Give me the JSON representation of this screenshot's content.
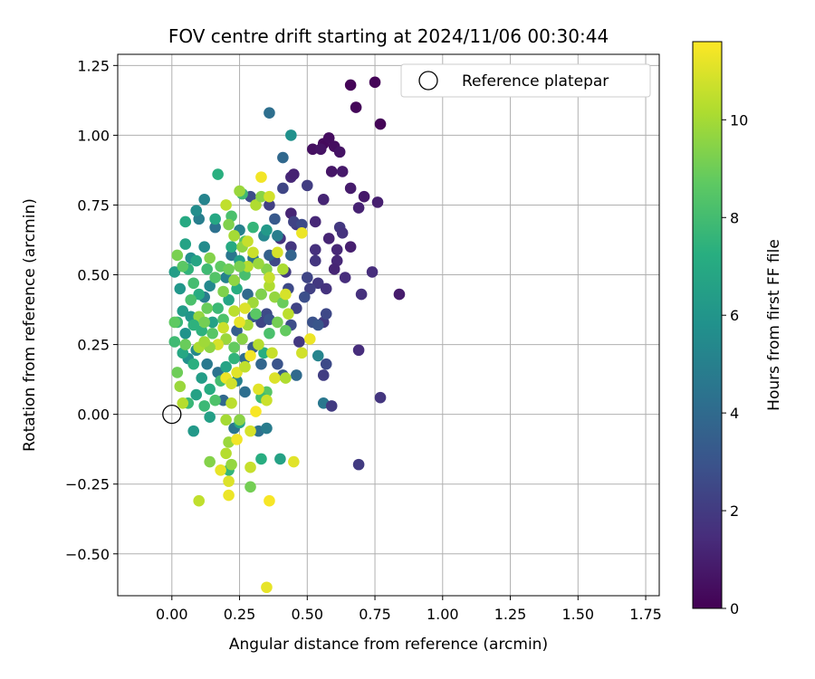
{
  "chart_data": {
    "type": "scatter",
    "title": "FOV centre drift starting at 2024/11/06 00:30:44",
    "xlabel": "Angular distance from reference (arcmin)",
    "ylabel": "Rotation from reference (arcmin)",
    "xlim": [
      -0.2,
      1.8
    ],
    "ylim": [
      -0.65,
      1.29
    ],
    "xticks": [
      "0.00",
      "0.25",
      "0.50",
      "0.75",
      "1.00",
      "1.25",
      "1.50",
      "1.75"
    ],
    "xtick_values": [
      0,
      0.25,
      0.5,
      0.75,
      1.0,
      1.25,
      1.5,
      1.75
    ],
    "yticks": [
      "−0.50",
      "−0.25",
      "0.00",
      "0.25",
      "0.50",
      "0.75",
      "1.00",
      "1.25"
    ],
    "ytick_values": [
      -0.5,
      -0.25,
      0,
      0.25,
      0.5,
      0.75,
      1.0,
      1.25
    ],
    "grid": true,
    "legend": {
      "label": "Reference platepar",
      "placement": "top-right"
    },
    "reference_point": {
      "x": 0,
      "y": 0
    },
    "colorbar": {
      "label": "Hours from first FF file",
      "colormap": "viridis",
      "range": [
        0,
        11.6
      ],
      "ticks": [
        "0",
        "2",
        "4",
        "6",
        "8",
        "10"
      ],
      "tick_values": [
        0,
        2,
        4,
        6,
        8,
        10
      ]
    },
    "points": [
      {
        "x": 0.66,
        "y": 1.18,
        "h": 0.1
      },
      {
        "x": 0.75,
        "y": 1.19,
        "h": 0.1
      },
      {
        "x": 0.77,
        "y": 1.04,
        "h": 0.1
      },
      {
        "x": 0.68,
        "y": 1.1,
        "h": 0.2
      },
      {
        "x": 0.56,
        "y": 0.97,
        "h": 0.3
      },
      {
        "x": 0.58,
        "y": 0.99,
        "h": 0.4
      },
      {
        "x": 0.52,
        "y": 0.95,
        "h": 0.5
      },
      {
        "x": 0.55,
        "y": 0.95,
        "h": 0.6
      },
      {
        "x": 0.6,
        "y": 0.96,
        "h": 0.4
      },
      {
        "x": 0.62,
        "y": 0.94,
        "h": 0.6
      },
      {
        "x": 0.59,
        "y": 0.87,
        "h": 0.7
      },
      {
        "x": 0.63,
        "y": 0.87,
        "h": 0.8
      },
      {
        "x": 0.66,
        "y": 0.81,
        "h": 0.9
      },
      {
        "x": 0.71,
        "y": 0.78,
        "h": 0.8
      },
      {
        "x": 0.76,
        "y": 0.76,
        "h": 1.0
      },
      {
        "x": 0.69,
        "y": 0.74,
        "h": 1.1
      },
      {
        "x": 0.56,
        "y": 0.77,
        "h": 1.2
      },
      {
        "x": 0.53,
        "y": 0.69,
        "h": 1.3
      },
      {
        "x": 0.58,
        "y": 0.63,
        "h": 1.2
      },
      {
        "x": 0.61,
        "y": 0.59,
        "h": 1.3
      },
      {
        "x": 0.66,
        "y": 0.6,
        "h": 1.0
      },
      {
        "x": 0.62,
        "y": 0.67,
        "h": 1.9
      },
      {
        "x": 0.63,
        "y": 0.65,
        "h": 1.7
      },
      {
        "x": 0.61,
        "y": 0.55,
        "h": 1.3
      },
      {
        "x": 0.64,
        "y": 0.49,
        "h": 1.5
      },
      {
        "x": 0.6,
        "y": 0.52,
        "h": 1.2
      },
      {
        "x": 0.53,
        "y": 0.59,
        "h": 1.6
      },
      {
        "x": 0.53,
        "y": 0.55,
        "h": 1.8
      },
      {
        "x": 0.54,
        "y": 0.47,
        "h": 1.9
      },
      {
        "x": 0.57,
        "y": 0.45,
        "h": 1.7
      },
      {
        "x": 0.74,
        "y": 0.51,
        "h": 1.5
      },
      {
        "x": 0.84,
        "y": 0.43,
        "h": 0.9
      },
      {
        "x": 0.7,
        "y": 0.43,
        "h": 1.6
      },
      {
        "x": 0.44,
        "y": 0.85,
        "h": 1.3
      },
      {
        "x": 0.45,
        "y": 0.86,
        "h": 1.1
      },
      {
        "x": 0.5,
        "y": 0.82,
        "h": 2.1
      },
      {
        "x": 0.41,
        "y": 0.81,
        "h": 2.4
      },
      {
        "x": 0.44,
        "y": 0.72,
        "h": 1.2
      },
      {
        "x": 0.46,
        "y": 0.68,
        "h": 2.0
      },
      {
        "x": 0.4,
        "y": 0.63,
        "h": 1.7
      },
      {
        "x": 0.45,
        "y": 0.69,
        "h": 2.3
      },
      {
        "x": 0.48,
        "y": 0.68,
        "h": 2.6
      },
      {
        "x": 0.36,
        "y": 0.75,
        "h": 2.2
      },
      {
        "x": 0.44,
        "y": 0.6,
        "h": 1.8
      },
      {
        "x": 0.38,
        "y": 0.55,
        "h": 2.5
      },
      {
        "x": 0.42,
        "y": 0.51,
        "h": 2.0
      },
      {
        "x": 0.5,
        "y": 0.49,
        "h": 2.4
      },
      {
        "x": 0.51,
        "y": 0.45,
        "h": 2.2
      },
      {
        "x": 0.43,
        "y": 0.45,
        "h": 2.6
      },
      {
        "x": 0.49,
        "y": 0.42,
        "h": 2.8
      },
      {
        "x": 0.46,
        "y": 0.38,
        "h": 2.3
      },
      {
        "x": 0.56,
        "y": 0.33,
        "h": 2.0
      },
      {
        "x": 0.52,
        "y": 0.33,
        "h": 2.9
      },
      {
        "x": 0.44,
        "y": 0.32,
        "h": 2.7
      },
      {
        "x": 0.47,
        "y": 0.26,
        "h": 1.9
      },
      {
        "x": 0.54,
        "y": 0.32,
        "h": 3.1
      },
      {
        "x": 0.57,
        "y": 0.36,
        "h": 2.5
      },
      {
        "x": 0.33,
        "y": 0.43,
        "h": 2.8
      },
      {
        "x": 0.35,
        "y": 0.36,
        "h": 2.6
      },
      {
        "x": 0.33,
        "y": 0.33,
        "h": 2.4
      },
      {
        "x": 0.36,
        "y": 0.34,
        "h": 3.0
      },
      {
        "x": 0.29,
        "y": 0.78,
        "h": 2.7
      },
      {
        "x": 0.38,
        "y": 0.7,
        "h": 3.2
      },
      {
        "x": 0.41,
        "y": 0.92,
        "h": 3.9
      },
      {
        "x": 0.36,
        "y": 1.08,
        "h": 4.2
      },
      {
        "x": 0.44,
        "y": 1.0,
        "h": 5.8
      },
      {
        "x": 0.36,
        "y": 0.57,
        "h": 3.6
      },
      {
        "x": 0.3,
        "y": 0.35,
        "h": 3.3
      },
      {
        "x": 0.24,
        "y": 0.3,
        "h": 3.5
      },
      {
        "x": 0.3,
        "y": 0.24,
        "h": 3.4
      },
      {
        "x": 0.27,
        "y": 0.2,
        "h": 4.1
      },
      {
        "x": 0.33,
        "y": 0.18,
        "h": 3.8
      },
      {
        "x": 0.39,
        "y": 0.18,
        "h": 3.0
      },
      {
        "x": 0.41,
        "y": 0.14,
        "h": 3.3
      },
      {
        "x": 0.57,
        "y": 0.18,
        "h": 2.6
      },
      {
        "x": 0.54,
        "y": 0.21,
        "h": 5.2
      },
      {
        "x": 0.56,
        "y": 0.14,
        "h": 2.1
      },
      {
        "x": 0.46,
        "y": 0.14,
        "h": 4.0
      },
      {
        "x": 0.56,
        "y": 0.04,
        "h": 4.6
      },
      {
        "x": 0.59,
        "y": 0.03,
        "h": 2.0
      },
      {
        "x": 0.77,
        "y": 0.06,
        "h": 1.8
      },
      {
        "x": 0.69,
        "y": 0.23,
        "h": 1.5
      },
      {
        "x": 0.69,
        "y": -0.18,
        "h": 2.0
      },
      {
        "x": 0.32,
        "y": -0.06,
        "h": 4.3
      },
      {
        "x": 0.35,
        "y": -0.05,
        "h": 4.8
      },
      {
        "x": 0.23,
        "y": -0.05,
        "h": 4.5
      },
      {
        "x": 0.19,
        "y": 0.05,
        "h": 3.9
      },
      {
        "x": 0.17,
        "y": 0.15,
        "h": 4.4
      },
      {
        "x": 0.13,
        "y": 0.18,
        "h": 4.7
      },
      {
        "x": 0.24,
        "y": 0.12,
        "h": 5.0
      },
      {
        "x": 0.27,
        "y": 0.08,
        "h": 4.2
      },
      {
        "x": 0.39,
        "y": 0.64,
        "h": 4.9
      },
      {
        "x": 0.44,
        "y": 0.57,
        "h": 3.7
      },
      {
        "x": 0.34,
        "y": 0.64,
        "h": 5.3
      },
      {
        "x": 0.3,
        "y": 0.56,
        "h": 4.4
      },
      {
        "x": 0.22,
        "y": 0.57,
        "h": 4.6
      },
      {
        "x": 0.2,
        "y": 0.49,
        "h": 5.1
      },
      {
        "x": 0.14,
        "y": 0.46,
        "h": 5.4
      },
      {
        "x": 0.12,
        "y": 0.42,
        "h": 4.8
      },
      {
        "x": 0.28,
        "y": 0.43,
        "h": 4.0
      },
      {
        "x": 0.25,
        "y": 0.66,
        "h": 5.0
      },
      {
        "x": 0.16,
        "y": 0.67,
        "h": 4.3
      },
      {
        "x": 0.12,
        "y": 0.6,
        "h": 5.5
      },
      {
        "x": 0.07,
        "y": 0.56,
        "h": 5.7
      },
      {
        "x": 0.1,
        "y": 0.7,
        "h": 4.9
      },
      {
        "x": 0.12,
        "y": 0.77,
        "h": 5.2
      },
      {
        "x": 0.09,
        "y": 0.73,
        "h": 5.6
      },
      {
        "x": 0.06,
        "y": 0.2,
        "h": 5.8
      },
      {
        "x": 0.09,
        "y": 0.23,
        "h": 5.4
      },
      {
        "x": 0.05,
        "y": 0.29,
        "h": 5.9
      },
      {
        "x": 0.08,
        "y": -0.06,
        "h": 6.2
      },
      {
        "x": 0.14,
        "y": -0.01,
        "h": 6.5
      },
      {
        "x": 0.25,
        "y": -0.03,
        "h": 6.8
      },
      {
        "x": 0.33,
        "y": -0.16,
        "h": 7.2
      },
      {
        "x": 0.4,
        "y": -0.16,
        "h": 6.6
      },
      {
        "x": 0.21,
        "y": -0.2,
        "h": 7.6
      },
      {
        "x": 0.17,
        "y": 0.86,
        "h": 7.3
      },
      {
        "x": 0.26,
        "y": 0.79,
        "h": 7.9
      },
      {
        "x": 0.22,
        "y": 0.71,
        "h": 8.2
      },
      {
        "x": 0.16,
        "y": 0.7,
        "h": 6.9
      },
      {
        "x": 0.05,
        "y": 0.69,
        "h": 7.0
      },
      {
        "x": 0.05,
        "y": 0.61,
        "h": 6.7
      },
      {
        "x": 0.01,
        "y": 0.51,
        "h": 6.4
      },
      {
        "x": 0.03,
        "y": 0.45,
        "h": 6.1
      },
      {
        "x": 0.06,
        "y": 0.52,
        "h": 7.5
      },
      {
        "x": 0.08,
        "y": 0.47,
        "h": 8.0
      },
      {
        "x": 0.1,
        "y": 0.43,
        "h": 7.1
      },
      {
        "x": 0.04,
        "y": 0.37,
        "h": 6.3
      },
      {
        "x": 0.02,
        "y": 0.33,
        "h": 7.7
      },
      {
        "x": 0.07,
        "y": 0.35,
        "h": 6.0
      },
      {
        "x": 0.11,
        "y": 0.3,
        "h": 7.4
      },
      {
        "x": 0.15,
        "y": 0.33,
        "h": 6.6
      },
      {
        "x": 0.17,
        "y": 0.38,
        "h": 7.8
      },
      {
        "x": 0.19,
        "y": 0.34,
        "h": 8.3
      },
      {
        "x": 0.21,
        "y": 0.41,
        "h": 6.8
      },
      {
        "x": 0.24,
        "y": 0.45,
        "h": 7.2
      },
      {
        "x": 0.27,
        "y": 0.5,
        "h": 8.1
      },
      {
        "x": 0.25,
        "y": 0.55,
        "h": 6.5
      },
      {
        "x": 0.22,
        "y": 0.6,
        "h": 7.0
      },
      {
        "x": 0.27,
        "y": 0.62,
        "h": 8.4
      },
      {
        "x": 0.3,
        "y": 0.67,
        "h": 7.6
      },
      {
        "x": 0.35,
        "y": 0.66,
        "h": 6.2
      },
      {
        "x": 0.01,
        "y": 0.26,
        "h": 7.9
      },
      {
        "x": 0.04,
        "y": 0.22,
        "h": 6.9
      },
      {
        "x": 0.08,
        "y": 0.18,
        "h": 7.3
      },
      {
        "x": 0.11,
        "y": 0.13,
        "h": 6.4
      },
      {
        "x": 0.14,
        "y": 0.09,
        "h": 7.1
      },
      {
        "x": 0.18,
        "y": 0.12,
        "h": 8.0
      },
      {
        "x": 0.2,
        "y": 0.17,
        "h": 6.7
      },
      {
        "x": 0.23,
        "y": 0.2,
        "h": 7.5
      },
      {
        "x": 0.06,
        "y": 0.04,
        "h": 7.7
      },
      {
        "x": 0.09,
        "y": 0.07,
        "h": 6.6
      },
      {
        "x": 0.16,
        "y": 0.05,
        "h": 8.3
      },
      {
        "x": 0.12,
        "y": 0.03,
        "h": 7.8
      },
      {
        "x": 0.34,
        "y": 0.22,
        "h": 7.2
      },
      {
        "x": 0.36,
        "y": 0.29,
        "h": 8.2
      },
      {
        "x": 0.42,
        "y": 0.3,
        "h": 8.8
      },
      {
        "x": 0.35,
        "y": 0.08,
        "h": 8.5
      },
      {
        "x": 0.33,
        "y": 0.06,
        "h": 7.9
      },
      {
        "x": 0.05,
        "y": 0.25,
        "h": 8.9
      },
      {
        "x": 0.02,
        "y": 0.57,
        "h": 9.2
      },
      {
        "x": 0.04,
        "y": 0.53,
        "h": 8.6
      },
      {
        "x": 0.14,
        "y": 0.56,
        "h": 9.4
      },
      {
        "x": 0.18,
        "y": 0.53,
        "h": 8.7
      },
      {
        "x": 0.21,
        "y": 0.52,
        "h": 9.0
      },
      {
        "x": 0.23,
        "y": 0.48,
        "h": 9.6
      },
      {
        "x": 0.16,
        "y": 0.49,
        "h": 8.4
      },
      {
        "x": 0.19,
        "y": 0.44,
        "h": 9.3
      },
      {
        "x": 0.13,
        "y": 0.38,
        "h": 8.9
      },
      {
        "x": 0.1,
        "y": 0.35,
        "h": 9.7
      },
      {
        "x": 0.12,
        "y": 0.33,
        "h": 9.1
      },
      {
        "x": 0.15,
        "y": 0.29,
        "h": 8.5
      },
      {
        "x": 0.2,
        "y": 0.27,
        "h": 9.8
      },
      {
        "x": 0.23,
        "y": 0.24,
        "h": 8.8
      },
      {
        "x": 0.26,
        "y": 0.27,
        "h": 9.5
      },
      {
        "x": 0.28,
        "y": 0.32,
        "h": 10.0
      },
      {
        "x": 0.31,
        "y": 0.36,
        "h": 8.6
      },
      {
        "x": 0.3,
        "y": 0.4,
        "h": 9.9
      },
      {
        "x": 0.33,
        "y": 0.43,
        "h": 9.3
      },
      {
        "x": 0.36,
        "y": 0.46,
        "h": 10.2
      },
      {
        "x": 0.38,
        "y": 0.42,
        "h": 9.7
      },
      {
        "x": 0.41,
        "y": 0.4,
        "h": 8.9
      },
      {
        "x": 0.43,
        "y": 0.36,
        "h": 10.4
      },
      {
        "x": 0.39,
        "y": 0.33,
        "h": 9.1
      },
      {
        "x": 0.41,
        "y": 0.52,
        "h": 10.1
      },
      {
        "x": 0.35,
        "y": 0.52,
        "h": 9.4
      },
      {
        "x": 0.36,
        "y": 0.49,
        "h": 10.6
      },
      {
        "x": 0.32,
        "y": 0.54,
        "h": 9.8
      },
      {
        "x": 0.28,
        "y": 0.53,
        "h": 10.3
      },
      {
        "x": 0.25,
        "y": 0.53,
        "h": 9.2
      },
      {
        "x": 0.3,
        "y": 0.58,
        "h": 10.7
      },
      {
        "x": 0.26,
        "y": 0.6,
        "h": 9.6
      },
      {
        "x": 0.23,
        "y": 0.64,
        "h": 10.0
      },
      {
        "x": 0.21,
        "y": 0.68,
        "h": 9.3
      },
      {
        "x": 0.2,
        "y": 0.75,
        "h": 10.5
      },
      {
        "x": 0.25,
        "y": 0.8,
        "h": 9.8
      },
      {
        "x": 0.31,
        "y": 0.75,
        "h": 10.2
      },
      {
        "x": 0.33,
        "y": 0.78,
        "h": 9.5
      },
      {
        "x": 0.36,
        "y": 0.78,
        "h": 10.8
      },
      {
        "x": 0.39,
        "y": 0.58,
        "h": 10.9
      },
      {
        "x": 0.28,
        "y": 0.62,
        "h": 10.6
      },
      {
        "x": 0.27,
        "y": 0.38,
        "h": 11.0
      },
      {
        "x": 0.23,
        "y": 0.37,
        "h": 10.4
      },
      {
        "x": 0.25,
        "y": 0.33,
        "h": 11.2
      },
      {
        "x": 0.19,
        "y": 0.31,
        "h": 10.7
      },
      {
        "x": 0.17,
        "y": 0.25,
        "h": 10.9
      },
      {
        "x": 0.14,
        "y": 0.24,
        "h": 9.6
      },
      {
        "x": 0.1,
        "y": 0.24,
        "h": 10.1
      },
      {
        "x": 0.12,
        "y": 0.26,
        "h": 9.9
      },
      {
        "x": 0.2,
        "y": 0.13,
        "h": 11.3
      },
      {
        "x": 0.22,
        "y": 0.11,
        "h": 10.8
      },
      {
        "x": 0.24,
        "y": 0.15,
        "h": 11.1
      },
      {
        "x": 0.27,
        "y": 0.17,
        "h": 10.5
      },
      {
        "x": 0.29,
        "y": 0.21,
        "h": 11.4
      },
      {
        "x": 0.32,
        "y": 0.25,
        "h": 10.3
      },
      {
        "x": 0.37,
        "y": 0.22,
        "h": 10.6
      },
      {
        "x": 0.38,
        "y": 0.13,
        "h": 11.0
      },
      {
        "x": 0.42,
        "y": 0.13,
        "h": 10.2
      },
      {
        "x": 0.48,
        "y": 0.22,
        "h": 10.8
      },
      {
        "x": 0.51,
        "y": 0.27,
        "h": 11.3
      },
      {
        "x": 0.32,
        "y": 0.09,
        "h": 11.1
      },
      {
        "x": 0.35,
        "y": 0.05,
        "h": 10.7
      },
      {
        "x": 0.31,
        "y": 0.01,
        "h": 11.5
      },
      {
        "x": 0.22,
        "y": 0.04,
        "h": 10.4
      },
      {
        "x": 0.2,
        "y": -0.02,
        "h": 10.0
      },
      {
        "x": 0.25,
        "y": -0.02,
        "h": 9.5
      },
      {
        "x": 0.29,
        "y": -0.06,
        "h": 10.9
      },
      {
        "x": 0.21,
        "y": -0.1,
        "h": 9.8
      },
      {
        "x": 0.24,
        "y": -0.09,
        "h": 11.4
      },
      {
        "x": 0.2,
        "y": -0.14,
        "h": 10.3
      },
      {
        "x": 0.22,
        "y": -0.18,
        "h": 9.7
      },
      {
        "x": 0.18,
        "y": -0.2,
        "h": 11.2
      },
      {
        "x": 0.29,
        "y": -0.19,
        "h": 10.6
      },
      {
        "x": 0.21,
        "y": -0.24,
        "h": 11.0
      },
      {
        "x": 0.29,
        "y": -0.26,
        "h": 9.1
      },
      {
        "x": 0.21,
        "y": -0.29,
        "h": 11.3
      },
      {
        "x": 0.36,
        "y": -0.31,
        "h": 11.5
      },
      {
        "x": 0.1,
        "y": -0.31,
        "h": 10.5
      },
      {
        "x": 0.45,
        "y": -0.17,
        "h": 11.1
      },
      {
        "x": 0.14,
        "y": -0.17,
        "h": 9.4
      },
      {
        "x": 0.35,
        "y": -0.62,
        "h": 11.2
      },
      {
        "x": 0.48,
        "y": 0.65,
        "h": 11.3
      },
      {
        "x": 0.42,
        "y": 0.43,
        "h": 10.9
      },
      {
        "x": 0.33,
        "y": 0.85,
        "h": 11.4
      },
      {
        "x": 0.03,
        "y": 0.1,
        "h": 9.8
      },
      {
        "x": 0.04,
        "y": 0.04,
        "h": 10.3
      },
      {
        "x": 0.02,
        "y": 0.15,
        "h": 9.0
      },
      {
        "x": 0.01,
        "y": 0.33,
        "h": 8.7
      },
      {
        "x": 0.08,
        "y": 0.32,
        "h": 7.4
      },
      {
        "x": 0.07,
        "y": 0.41,
        "h": 8.2
      },
      {
        "x": 0.09,
        "y": 0.55,
        "h": 6.8
      },
      {
        "x": 0.13,
        "y": 0.52,
        "h": 7.9
      }
    ]
  }
}
